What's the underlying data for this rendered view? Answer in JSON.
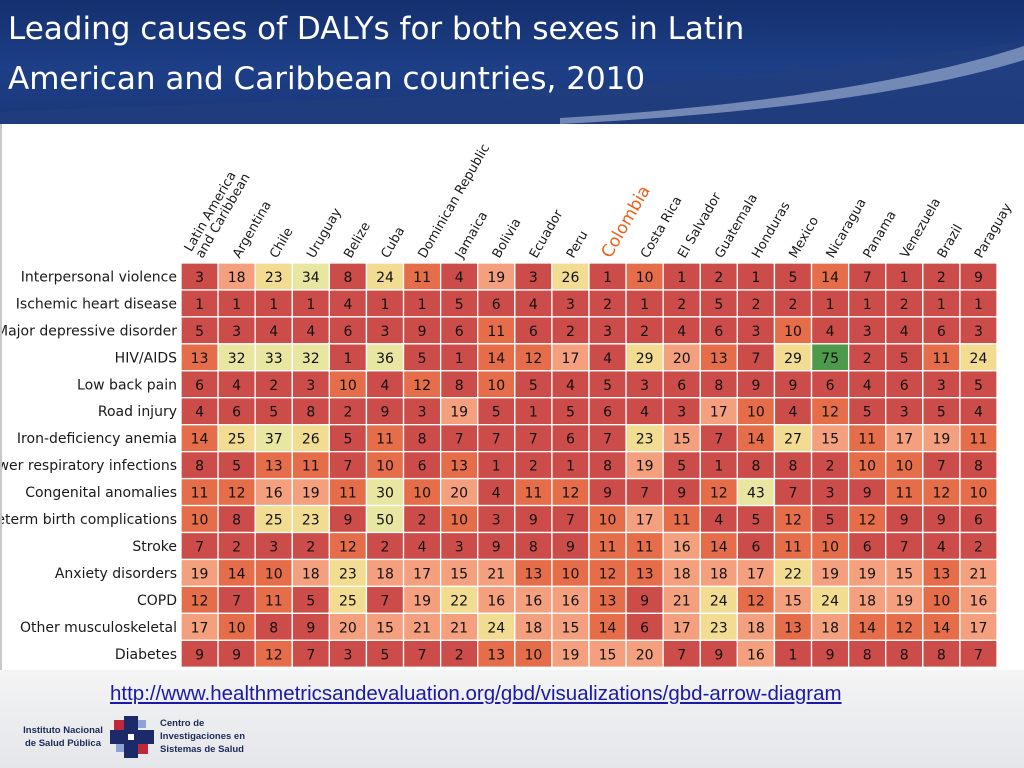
{
  "slide": {
    "title_line1": "Leading causes of DALYs for both sexes in Latin",
    "title_line2": "American and Caribbean countries, 2010",
    "source_link": "http://www.healthmetricsandevaluation.org/gbd/visualizations/gbd-arrow-diagram",
    "logo_left_line1": "Instituto Nacional",
    "logo_left_line2": "de Salud Pública",
    "logo_right_line1": "Centro de",
    "logo_right_line2": "Investigaciones en",
    "logo_right_line3": "Sistemas de Salud"
  },
  "colors": {
    "title_bg": "#1d3f86",
    "highlight_country": "#e8601e",
    "link": "#1a1aa6",
    "rank_colors": [
      "#4e9a4c",
      "#e8e6a0",
      "#f2dc92",
      "#f4a07f",
      "#e56d4a",
      "#cc4c4a"
    ]
  },
  "chart_data": {
    "type": "heatmap",
    "highlighted_column": "Colombia",
    "columns": [
      "Latin America and Caribbean",
      "Argentina",
      "Chile",
      "Uruguay",
      "Belize",
      "Cuba",
      "Dominican Republic",
      "Jamaica",
      "Bolivia",
      "Ecuador",
      "Peru",
      "Colombia",
      "Costa Rica",
      "El Salvador",
      "Guatemala",
      "Honduras",
      "Mexico",
      "Nicaragua",
      "Panama",
      "Venezuela",
      "Brazil",
      "Paraguay"
    ],
    "column_labels": [
      [
        "Latin America",
        "and Caribbean"
      ],
      [
        "Argentina"
      ],
      [
        "Chile"
      ],
      [
        "Uruguay"
      ],
      [
        "Belize"
      ],
      [
        "Cuba"
      ],
      [
        "Dominican Republic"
      ],
      [
        "Jamaica"
      ],
      [
        "Bolivia"
      ],
      [
        "Ecuador"
      ],
      [
        "Peru"
      ],
      [
        "Colombia"
      ],
      [
        "Costa Rica"
      ],
      [
        "El Salvador"
      ],
      [
        "Guatemala"
      ],
      [
        "Honduras"
      ],
      [
        "Mexico"
      ],
      [
        "Nicaragua"
      ],
      [
        "Panama"
      ],
      [
        "Venezuela"
      ],
      [
        "Brazil"
      ],
      [
        "Paraguay"
      ]
    ],
    "rows": [
      {
        "cause": "Interpersonal violence",
        "ranks": [
          3,
          18,
          23,
          34,
          8,
          24,
          11,
          4,
          19,
          3,
          26,
          1,
          10,
          1,
          2,
          1,
          5,
          14,
          7,
          1,
          2,
          9
        ]
      },
      {
        "cause": "Ischemic heart disease",
        "ranks": [
          1,
          1,
          1,
          1,
          4,
          1,
          1,
          5,
          6,
          4,
          3,
          2,
          1,
          2,
          5,
          2,
          2,
          1,
          1,
          2,
          1,
          1
        ]
      },
      {
        "cause": "Major depressive disorder",
        "ranks": [
          5,
          3,
          4,
          4,
          6,
          3,
          9,
          6,
          11,
          6,
          2,
          3,
          2,
          4,
          6,
          3,
          10,
          4,
          3,
          4,
          6,
          3
        ]
      },
      {
        "cause": "HIV/AIDS",
        "ranks": [
          13,
          32,
          33,
          32,
          1,
          36,
          5,
          1,
          14,
          12,
          17,
          4,
          29,
          20,
          13,
          7,
          29,
          75,
          2,
          5,
          11,
          24
        ]
      },
      {
        "cause": "Low back pain",
        "ranks": [
          6,
          4,
          2,
          3,
          10,
          4,
          12,
          8,
          10,
          5,
          4,
          5,
          3,
          6,
          8,
          9,
          9,
          6,
          4,
          6,
          3,
          5
        ]
      },
      {
        "cause": "Road injury",
        "ranks": [
          4,
          6,
          5,
          8,
          2,
          9,
          3,
          19,
          5,
          1,
          5,
          6,
          4,
          3,
          17,
          10,
          4,
          12,
          5,
          3,
          5,
          4
        ]
      },
      {
        "cause": "Iron-deficiency anemia",
        "ranks": [
          14,
          25,
          37,
          26,
          5,
          11,
          8,
          7,
          7,
          7,
          6,
          7,
          23,
          15,
          7,
          14,
          27,
          15,
          11,
          17,
          19,
          11
        ]
      },
      {
        "cause": "Lower respiratory infections",
        "ranks": [
          8,
          5,
          13,
          11,
          7,
          10,
          6,
          13,
          1,
          2,
          1,
          8,
          19,
          5,
          1,
          8,
          8,
          2,
          10,
          10,
          7,
          8
        ]
      },
      {
        "cause": "Congenital anomalies",
        "ranks": [
          11,
          12,
          16,
          19,
          11,
          30,
          10,
          20,
          4,
          11,
          12,
          9,
          7,
          9,
          12,
          43,
          7,
          3,
          9,
          11,
          12,
          10
        ]
      },
      {
        "cause": "Preterm birth complications",
        "ranks": [
          10,
          8,
          25,
          23,
          9,
          50,
          2,
          10,
          3,
          9,
          7,
          10,
          17,
          11,
          4,
          5,
          12,
          5,
          12,
          9,
          9,
          6
        ]
      },
      {
        "cause": "Stroke",
        "ranks": [
          7,
          2,
          3,
          2,
          12,
          2,
          4,
          3,
          9,
          8,
          9,
          11,
          11,
          16,
          14,
          6,
          11,
          10,
          6,
          7,
          4,
          2
        ]
      },
      {
        "cause": "Anxiety disorders",
        "ranks": [
          19,
          14,
          10,
          18,
          23,
          18,
          17,
          15,
          21,
          13,
          10,
          12,
          13,
          18,
          18,
          17,
          22,
          19,
          19,
          15,
          13,
          21
        ]
      },
      {
        "cause": "COPD",
        "ranks": [
          12,
          7,
          11,
          5,
          25,
          7,
          19,
          22,
          16,
          16,
          16,
          13,
          9,
          21,
          24,
          12,
          15,
          24,
          18,
          19,
          10,
          16
        ]
      },
      {
        "cause": "Other musculoskeletal",
        "ranks": [
          17,
          10,
          8,
          9,
          20,
          15,
          21,
          21,
          24,
          18,
          15,
          14,
          6,
          17,
          23,
          18,
          13,
          18,
          14,
          12,
          14,
          17
        ]
      },
      {
        "cause": "Diabetes",
        "ranks": [
          9,
          9,
          12,
          7,
          3,
          5,
          7,
          2,
          13,
          10,
          19,
          15,
          20,
          7,
          9,
          16,
          1,
          9,
          8,
          8,
          8,
          7
        ]
      }
    ]
  }
}
